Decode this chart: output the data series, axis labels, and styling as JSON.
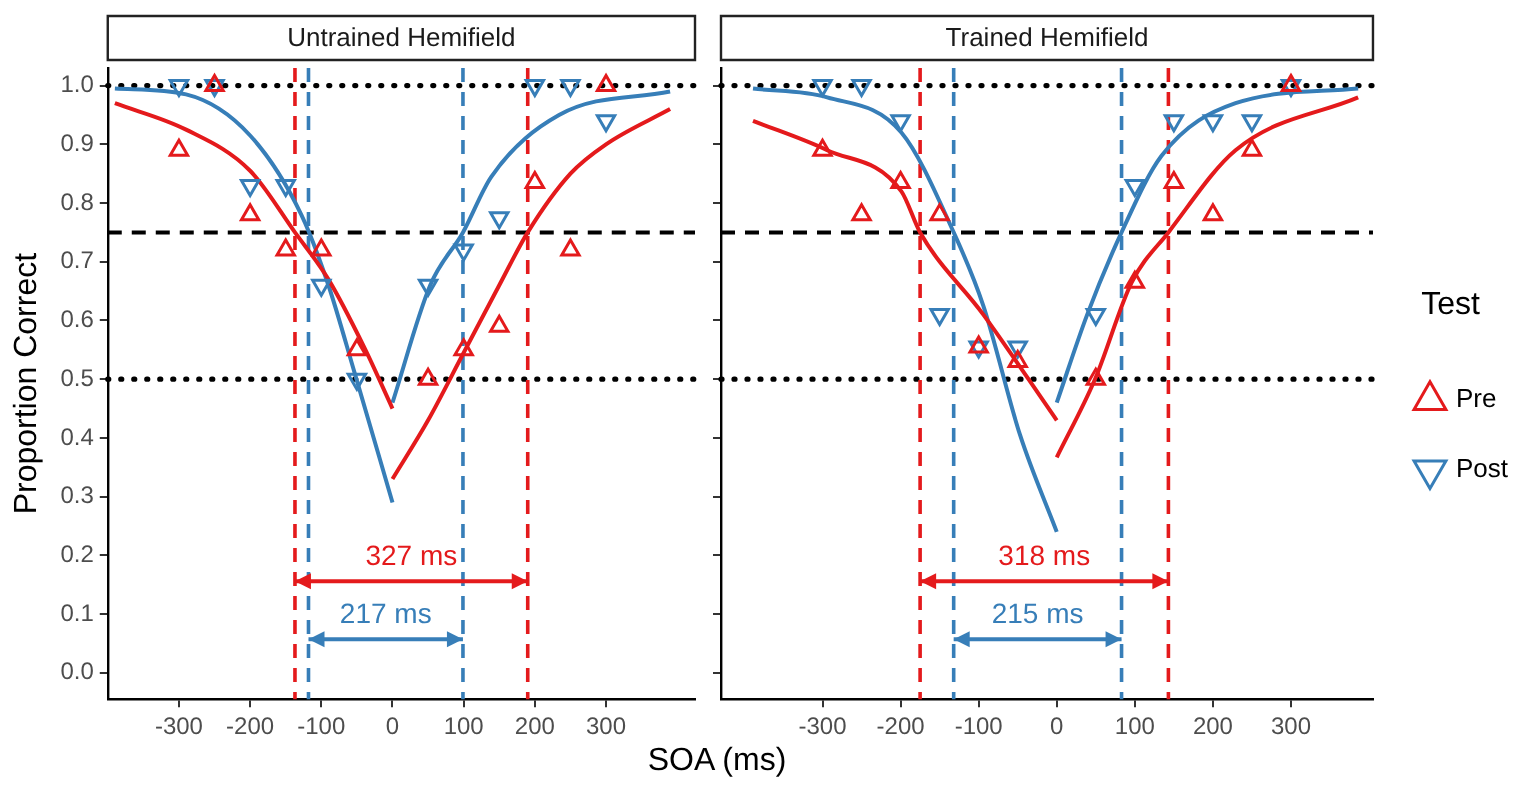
{
  "chart_data": [
    {
      "type": "scatter",
      "title": "Untrained Hemifield",
      "xlabel": "SOA (ms)",
      "ylabel": "Proportion Correct",
      "xlim": [
        -400,
        425
      ],
      "ylim": [
        -0.045,
        1.03
      ],
      "xticks": [
        -300,
        -200,
        -100,
        0,
        100,
        200,
        300
      ],
      "yticks": [
        {
          "value": 0,
          "label": "0.0"
        },
        {
          "value": 0.1,
          "label": "0.1"
        },
        {
          "value": 0.2,
          "label": "0.2"
        },
        {
          "value": 0.3,
          "label": "0.3"
        },
        {
          "value": 0.4,
          "label": "0.4"
        },
        {
          "value": 0.5,
          "label": "0.5"
        },
        {
          "value": 0.6,
          "label": "0.6"
        },
        {
          "value": 0.7,
          "label": "0.7"
        },
        {
          "value": 0.8,
          "label": "0.8"
        },
        {
          "value": 0.9,
          "label": "0.9"
        },
        {
          "value": 1,
          "label": "1.0"
        }
      ],
      "grid": false,
      "legend": false,
      "x": [
        -300,
        -250,
        -200,
        -150,
        -100,
        -50,
        50,
        100,
        150,
        200,
        250,
        300
      ],
      "series": [
        {
          "type": "scatter",
          "marker": "triangle",
          "color": "#e41a1c",
          "values": [
            0.89,
            1.0,
            0.78,
            0.72,
            0.72,
            0.55,
            0.5,
            0.55,
            0.59,
            0.835,
            0.72,
            1.0
          ]
        },
        {
          "type": "scatter",
          "marker": "triangle-down",
          "color": "#377eb8",
          "values": [
            1.0,
            1.0,
            0.83,
            0.83,
            0.66,
            0.5,
            0.66,
            0.72,
            0.775,
            1.0,
            1.0,
            0.94
          ]
        },
        {
          "type": "line",
          "marker": "none",
          "color": "#e41a1c",
          "x": [
            -390,
            -290,
            -200,
            -137,
            -90,
            -40,
            0
          ],
          "values": [
            0.97,
            0.925,
            0.855,
            0.75,
            0.67,
            0.555,
            0.45
          ]
        },
        {
          "type": "line",
          "marker": "none",
          "color": "#e41a1c",
          "x": [
            0,
            50,
            100,
            150,
            190,
            250,
            300,
            390
          ],
          "values": [
            0.33,
            0.43,
            0.545,
            0.66,
            0.75,
            0.85,
            0.9,
            0.96
          ]
        },
        {
          "type": "line",
          "marker": "none",
          "color": "#377eb8",
          "x": [
            -390,
            -290,
            -200,
            -128,
            -90,
            -53,
            0
          ],
          "values": [
            0.995,
            0.985,
            0.915,
            0.78,
            0.66,
            0.51,
            0.29
          ]
        },
        {
          "type": "line",
          "marker": "none",
          "color": "#377eb8",
          "x": [
            0,
            53,
            99,
            139,
            234,
            390
          ],
          "values": [
            0.46,
            0.66,
            0.75,
            0.845,
            0.95,
            0.99
          ]
        }
      ],
      "ref_lines": [
        {
          "axis": "y",
          "value": 1.0,
          "color": "#000000",
          "line_style": "dotted"
        },
        {
          "axis": "y",
          "value": 0.75,
          "color": "#000000",
          "line_style": "dashed"
        },
        {
          "axis": "y",
          "value": 0.5,
          "color": "#000000",
          "line_style": "dotted"
        },
        {
          "axis": "x",
          "value": -137,
          "color": "#e41a1c",
          "line_style": "dashed"
        },
        {
          "axis": "x",
          "value": 190,
          "color": "#e41a1c",
          "line_style": "dashed"
        },
        {
          "axis": "x",
          "value": -118,
          "color": "#377eb8",
          "line_style": "dashed"
        },
        {
          "axis": "x",
          "value": 99,
          "color": "#377eb8",
          "line_style": "dashed"
        }
      ],
      "annotations": [
        "327 ms",
        "217 ms"
      ]
    },
    {
      "type": "scatter",
      "title": "Trained Hemifield",
      "xlim": [
        -430,
        405
      ],
      "ylim": [
        -0.045,
        1.03
      ],
      "xticks": [
        -300,
        -200,
        -100,
        0,
        100,
        200,
        300
      ],
      "yticks": [
        {
          "value": 0,
          "label": null
        },
        {
          "value": 0.1,
          "label": null
        },
        {
          "value": 0.2,
          "label": null
        },
        {
          "value": 0.3,
          "label": null
        },
        {
          "value": 0.4,
          "label": null
        },
        {
          "value": 0.5,
          "label": null
        },
        {
          "value": 0.6,
          "label": null
        },
        {
          "value": 0.7,
          "label": null
        },
        {
          "value": 0.8,
          "label": null
        },
        {
          "value": 0.9,
          "label": null
        },
        {
          "value": 1,
          "label": null
        }
      ],
      "tick_labels": "x",
      "grid": false,
      "legend": "right",
      "legend_title": "Test",
      "x": [
        -300,
        -250,
        -200,
        -150,
        -100,
        -50,
        50,
        100,
        150,
        200,
        250,
        300
      ],
      "series": [
        {
          "name": "Pre",
          "type": "scatter",
          "marker": "triangle",
          "color": "#e41a1c",
          "values": [
            0.89,
            0.78,
            0.835,
            0.78,
            0.555,
            0.53,
            0.5,
            0.665,
            0.835,
            0.78,
            0.89,
            1.0
          ]
        },
        {
          "name": "Post",
          "type": "scatter",
          "marker": "triangle-down",
          "color": "#377eb8",
          "values": [
            1.0,
            1.0,
            0.94,
            0.61,
            0.555,
            0.555,
            0.61,
            0.83,
            0.94,
            0.94,
            0.94,
            1.0
          ]
        },
        {
          "type": "line",
          "marker": "none",
          "color": "#e41a1c",
          "x": [
            -389,
            -294,
            -199,
            -175,
            -94,
            0
          ],
          "values": [
            0.94,
            0.89,
            0.82,
            0.75,
            0.61,
            0.43
          ]
        },
        {
          "type": "line",
          "marker": "none",
          "color": "#e41a1c",
          "x": [
            0,
            49,
            96,
            143,
            229,
            386
          ],
          "values": [
            0.367,
            0.5,
            0.665,
            0.75,
            0.89,
            0.98
          ]
        },
        {
          "type": "line",
          "marker": "none",
          "color": "#377eb8",
          "x": [
            -389,
            -294,
            -199,
            -132,
            -94,
            -47,
            0
          ],
          "values": [
            0.995,
            0.98,
            0.92,
            0.75,
            0.625,
            0.405,
            0.24
          ]
        },
        {
          "type": "line",
          "marker": "none",
          "color": "#377eb8",
          "x": [
            0,
            39,
            83,
            134,
            229,
            386
          ],
          "values": [
            0.46,
            0.61,
            0.75,
            0.88,
            0.97,
            0.995
          ]
        }
      ],
      "ref_lines": [
        {
          "axis": "y",
          "value": 1.0,
          "color": "#000000",
          "line_style": "dotted"
        },
        {
          "axis": "y",
          "value": 0.75,
          "color": "#000000",
          "line_style": "dashed"
        },
        {
          "axis": "y",
          "value": 0.5,
          "color": "#000000",
          "line_style": "dotted"
        },
        {
          "axis": "x",
          "value": -175,
          "color": "#e41a1c",
          "line_style": "dashed"
        },
        {
          "axis": "x",
          "value": 143,
          "color": "#e41a1c",
          "line_style": "dashed"
        },
        {
          "axis": "x",
          "value": -132,
          "color": "#377eb8",
          "line_style": "dashed"
        },
        {
          "axis": "x",
          "value": 83,
          "color": "#377eb8",
          "line_style": "dashed"
        }
      ],
      "annotations": [
        "318 ms",
        "215 ms"
      ]
    }
  ]
}
